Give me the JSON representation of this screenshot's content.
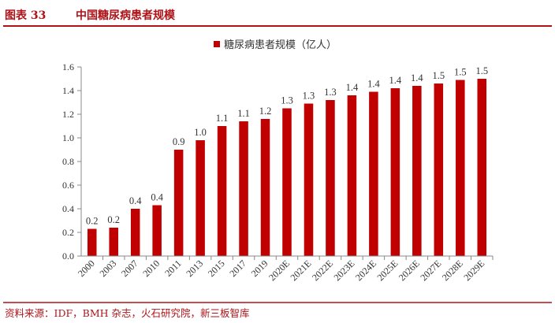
{
  "figure": {
    "number": "图表 33",
    "title": "中国糖尿病患者规模",
    "source": "资料来源：IDF，BMH 杂志，火石研究院，新三板智库"
  },
  "colors": {
    "accent": "#b01217",
    "bar": "#c00000",
    "axis": "#888888",
    "text": "#333333"
  },
  "chart_data": {
    "type": "bar",
    "categories": [
      "2000",
      "2003",
      "2007",
      "2010",
      "2011",
      "2013",
      "2015",
      "2017",
      "2019",
      "2020E",
      "2021E",
      "2022E",
      "2023E",
      "2024E",
      "2025E",
      "2026E",
      "2027E",
      "2028E",
      "2029E"
    ],
    "series": [
      {
        "name": "糖尿病患者规模（亿人）",
        "values": [
          0.23,
          0.24,
          0.4,
          0.43,
          0.9,
          0.98,
          1.1,
          1.14,
          1.16,
          1.25,
          1.29,
          1.32,
          1.36,
          1.39,
          1.42,
          1.44,
          1.46,
          1.49,
          1.5
        ],
        "labels": [
          "0.2",
          "0.2",
          "0.4",
          "0.4",
          "0.9",
          "1.0",
          "1.1",
          "1.1",
          "1.2",
          "1.3",
          "1.3",
          "1.3",
          "1.4",
          "1.4",
          "1.4",
          "1.4",
          "1.5",
          "1.5",
          "1.5"
        ]
      }
    ],
    "ylim": [
      0,
      1.6
    ],
    "yticks": [
      "0.0",
      "0.2",
      "0.4",
      "0.6",
      "0.8",
      "1.0",
      "1.2",
      "1.4",
      "1.6"
    ],
    "grid": false,
    "legend_position": "top-right"
  }
}
